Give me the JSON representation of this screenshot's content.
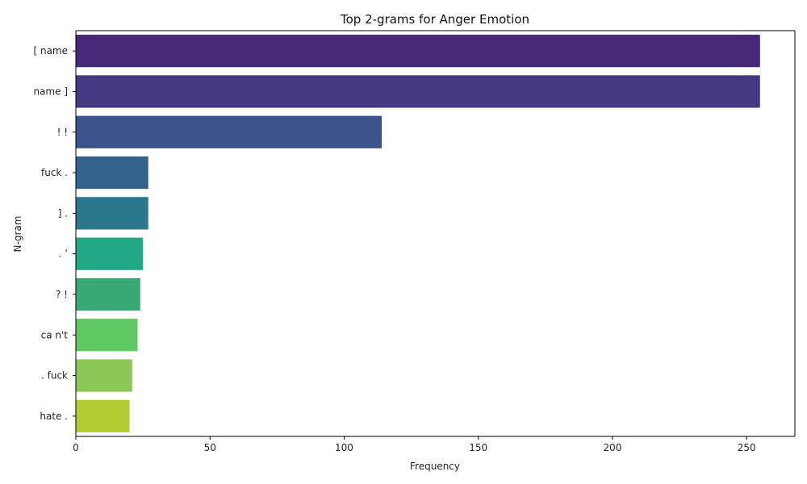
{
  "chart_data": {
    "type": "bar",
    "orientation": "horizontal",
    "title": "Top 2-grams for Anger Emotion",
    "xlabel": "Frequency",
    "ylabel": "N-gram",
    "xlim": [
      0,
      268
    ],
    "xticks": [
      0,
      50,
      100,
      150,
      200,
      250
    ],
    "grid": false,
    "categories": [
      "[ name",
      "name ]",
      "! !",
      "fuck .",
      "] .",
      ". ’",
      "? !",
      "ca n't",
      ". fuck",
      "hate ."
    ],
    "values": [
      255,
      255,
      114,
      27,
      27,
      25,
      24,
      23,
      21,
      20
    ],
    "colors": [
      "#482878",
      "#443983",
      "#3b528b",
      "#33638d",
      "#2a788e",
      "#22a884",
      "#3aa874",
      "#5ec962",
      "#8bc855",
      "#b5cb33"
    ]
  }
}
